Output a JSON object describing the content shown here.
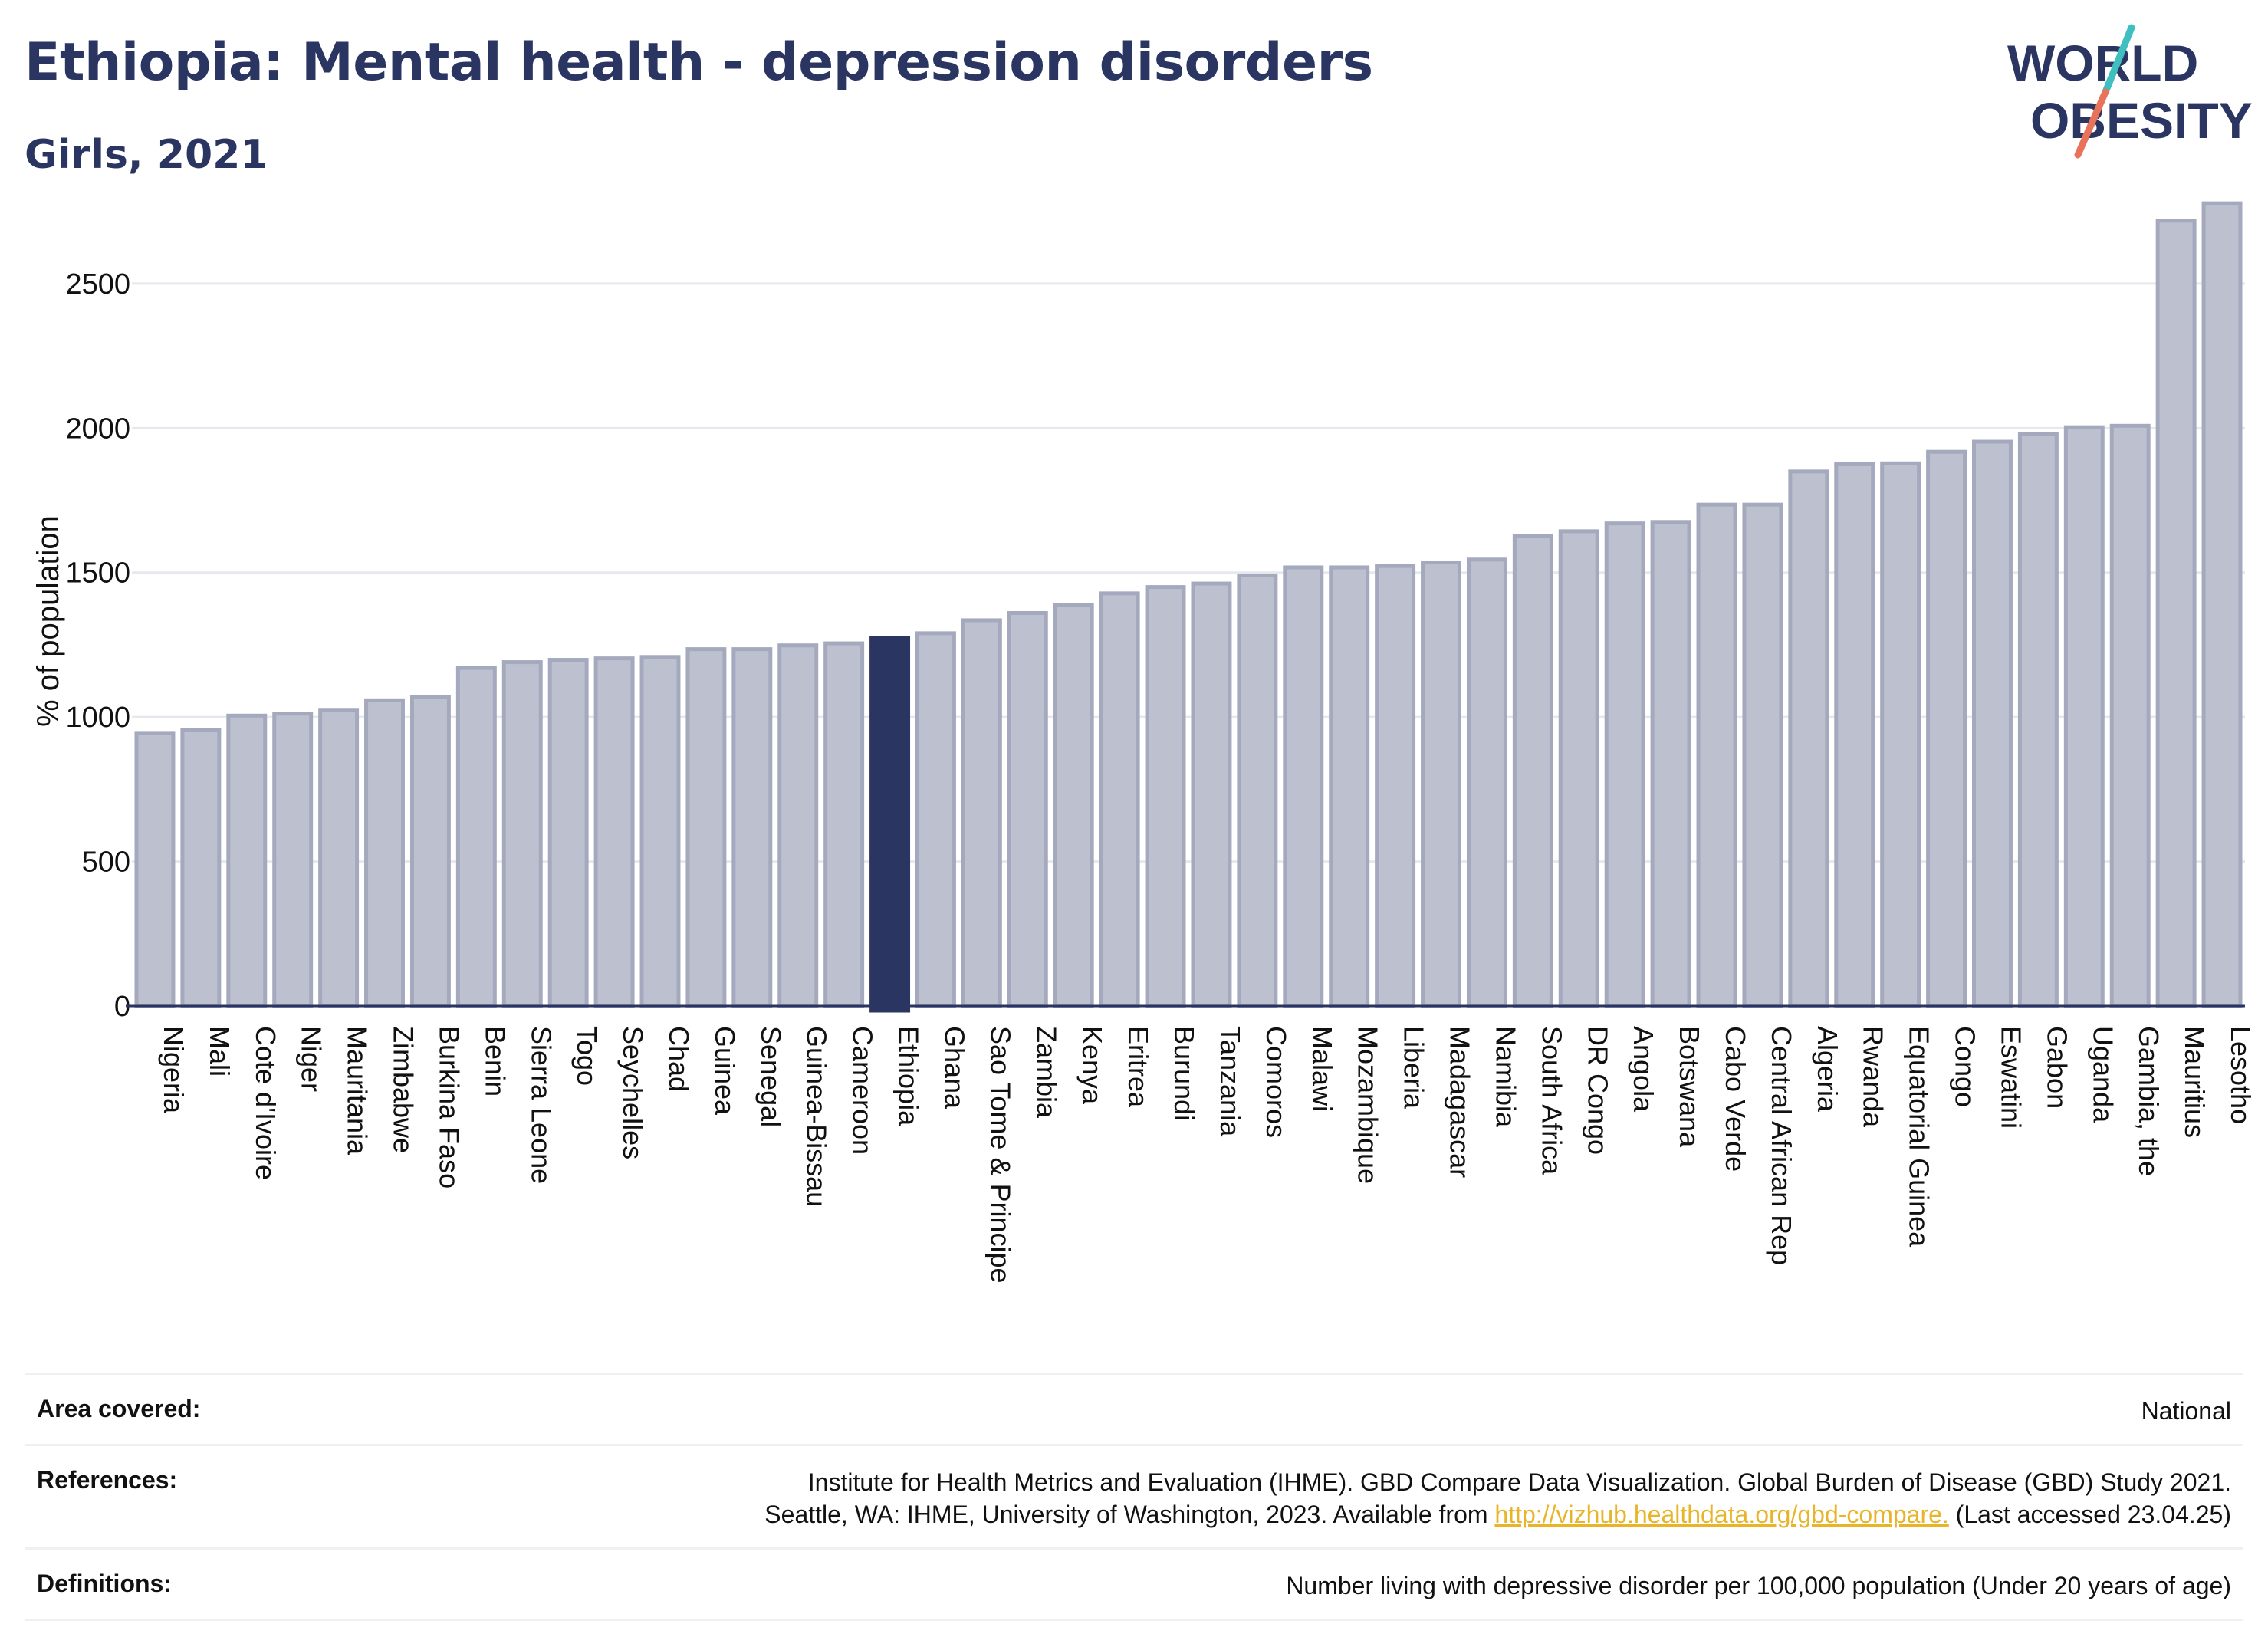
{
  "header": {
    "title": "Ethiopia: Mental health - depression disorders",
    "subtitle": "Girls, 2021"
  },
  "logo": {
    "line1": "WORLD",
    "line2": "OBESITY",
    "colors": {
      "text": "#2b3562",
      "slash_top": "#3fbfbf",
      "slash_bottom": "#e8735a"
    }
  },
  "chart_data": {
    "type": "bar",
    "ylabel": "% of population",
    "xlabel": "",
    "ylim": [
      0,
      2850
    ],
    "yticks": [
      0,
      500,
      1000,
      1500,
      2000,
      2500
    ],
    "grid": true,
    "highlight": "Ethiopia",
    "colors": {
      "bar": "#bcc0cf",
      "bar_edge": "#a4a9bd",
      "highlight": "#2b3562",
      "axis": "#2b3562"
    },
    "categories": [
      "Nigeria",
      "Mali",
      "Cote d'Ivoire",
      "Niger",
      "Mauritania",
      "Zimbabwe",
      "Burkina Faso",
      "Benin",
      "Sierra Leone",
      "Togo",
      "Seychelles",
      "Chad",
      "Guinea",
      "Senegal",
      "Guinea-Bissau",
      "Cameroon",
      "Ethiopia",
      "Ghana",
      "Sao Tome & Principe",
      "Zambia",
      "Kenya",
      "Eritrea",
      "Burundi",
      "Tanzania",
      "Comoros",
      "Malawi",
      "Mozambique",
      "Liberia",
      "Madagascar",
      "Namibia",
      "South Africa",
      "DR Congo",
      "Angola",
      "Botswana",
      "Cabo Verde",
      "Central African Rep",
      "Algeria",
      "Rwanda",
      "Equatorial Guinea",
      "Congo",
      "Eswatini",
      "Gabon",
      "Uganda",
      "Gambia, the",
      "Mauritius",
      "Lesotho"
    ],
    "values": [
      945,
      955,
      1005,
      1012,
      1025,
      1058,
      1070,
      1170,
      1190,
      1198,
      1203,
      1208,
      1235,
      1235,
      1248,
      1255,
      1275,
      1290,
      1335,
      1360,
      1388,
      1428,
      1450,
      1462,
      1490,
      1518,
      1518,
      1523,
      1535,
      1545,
      1628,
      1643,
      1670,
      1675,
      1735,
      1735,
      1850,
      1875,
      1878,
      1918,
      1953,
      1980,
      2003,
      2008,
      2718,
      2778
    ]
  },
  "footer": {
    "area_label": "Area covered:",
    "area_value": "National",
    "references_label": "References:",
    "references_line1": "Institute for Health Metrics and Evaluation (IHME). GBD Compare Data Visualization. Global Burden of Disease (GBD) Study 2021.",
    "references_line2_pre": "Seattle, WA: IHME, University of Washington, 2023. Available from ",
    "references_link": "http://vizhub.healthdata.org/gbd-compare.",
    "references_line2_post": " (Last accessed 23.04.25)",
    "definitions_label": "Definitions:",
    "definitions_value": "Number living with depressive disorder per 100,000 population (Under 20 years of age)"
  }
}
